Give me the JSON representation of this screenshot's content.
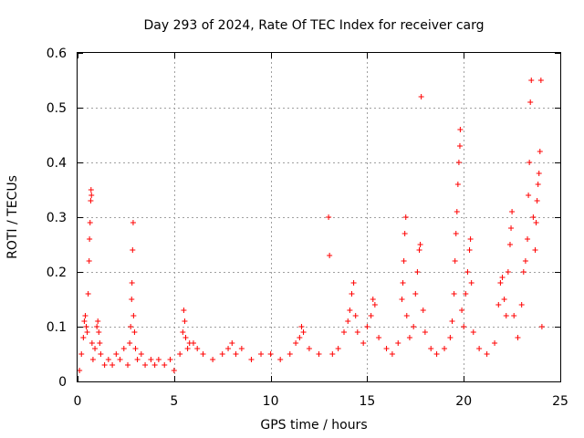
{
  "chart_data": {
    "type": "scatter",
    "title": "Day 293 of 2024, Rate Of TEC Index for receiver carg",
    "xlabel": "GPS time / hours",
    "ylabel": "ROTI / TECUs",
    "xlim": [
      0,
      25
    ],
    "ylim": [
      0,
      0.6
    ],
    "xticks": [
      0,
      5,
      10,
      15,
      20,
      25
    ],
    "yticks": [
      0,
      0.1,
      0.2,
      0.3,
      0.4,
      0.5,
      0.6
    ],
    "xtick_labels": [
      "0",
      "5",
      "10",
      "15",
      "20",
      "25"
    ],
    "ytick_labels": [
      "0",
      "0.1",
      "0.2",
      "0.3",
      "0.4",
      "0.5",
      "0.6"
    ],
    "grid": true,
    "marker": "+",
    "color": "#ff0000",
    "series": [
      {
        "name": "ROTI",
        "points": [
          [
            0.1,
            0.02
          ],
          [
            0.2,
            0.05
          ],
          [
            0.3,
            0.08
          ],
          [
            0.35,
            0.11
          ],
          [
            0.4,
            0.12
          ],
          [
            0.45,
            0.1
          ],
          [
            0.5,
            0.09
          ],
          [
            0.55,
            0.16
          ],
          [
            0.6,
            0.22
          ],
          [
            0.62,
            0.26
          ],
          [
            0.65,
            0.29
          ],
          [
            0.68,
            0.33
          ],
          [
            0.7,
            0.35
          ],
          [
            0.72,
            0.34
          ],
          [
            0.75,
            0.07
          ],
          [
            0.8,
            0.04
          ],
          [
            0.9,
            0.06
          ],
          [
            1.0,
            0.1
          ],
          [
            1.05,
            0.11
          ],
          [
            1.1,
            0.09
          ],
          [
            1.15,
            0.07
          ],
          [
            1.2,
            0.05
          ],
          [
            1.4,
            0.03
          ],
          [
            1.6,
            0.04
          ],
          [
            1.8,
            0.03
          ],
          [
            2.0,
            0.05
          ],
          [
            2.2,
            0.04
          ],
          [
            2.4,
            0.06
          ],
          [
            2.6,
            0.03
          ],
          [
            2.7,
            0.07
          ],
          [
            2.75,
            0.1
          ],
          [
            2.8,
            0.15
          ],
          [
            2.82,
            0.18
          ],
          [
            2.85,
            0.24
          ],
          [
            2.88,
            0.29
          ],
          [
            2.9,
            0.12
          ],
          [
            2.95,
            0.09
          ],
          [
            3.0,
            0.06
          ],
          [
            3.1,
            0.04
          ],
          [
            3.3,
            0.05
          ],
          [
            3.5,
            0.03
          ],
          [
            3.8,
            0.04
          ],
          [
            4.0,
            0.03
          ],
          [
            4.2,
            0.04
          ],
          [
            4.5,
            0.03
          ],
          [
            4.8,
            0.04
          ],
          [
            5.0,
            0.02
          ],
          [
            5.3,
            0.05
          ],
          [
            5.45,
            0.09
          ],
          [
            5.5,
            0.13
          ],
          [
            5.55,
            0.11
          ],
          [
            5.6,
            0.08
          ],
          [
            5.7,
            0.06
          ],
          [
            5.8,
            0.07
          ],
          [
            6.0,
            0.07
          ],
          [
            6.2,
            0.06
          ],
          [
            6.5,
            0.05
          ],
          [
            7.0,
            0.04
          ],
          [
            7.5,
            0.05
          ],
          [
            7.8,
            0.06
          ],
          [
            8.0,
            0.07
          ],
          [
            8.2,
            0.05
          ],
          [
            8.5,
            0.06
          ],
          [
            9.0,
            0.04
          ],
          [
            9.5,
            0.05
          ],
          [
            10.0,
            0.05
          ],
          [
            10.5,
            0.04
          ],
          [
            11.0,
            0.05
          ],
          [
            11.3,
            0.07
          ],
          [
            11.5,
            0.08
          ],
          [
            11.6,
            0.1
          ],
          [
            11.7,
            0.09
          ],
          [
            12.0,
            0.06
          ],
          [
            12.5,
            0.05
          ],
          [
            13.0,
            0.3
          ],
          [
            13.05,
            0.23
          ],
          [
            13.2,
            0.05
          ],
          [
            13.5,
            0.06
          ],
          [
            13.8,
            0.09
          ],
          [
            14.0,
            0.11
          ],
          [
            14.1,
            0.13
          ],
          [
            14.2,
            0.16
          ],
          [
            14.3,
            0.18
          ],
          [
            14.4,
            0.12
          ],
          [
            14.5,
            0.09
          ],
          [
            14.8,
            0.07
          ],
          [
            15.0,
            0.1
          ],
          [
            15.2,
            0.12
          ],
          [
            15.3,
            0.15
          ],
          [
            15.4,
            0.14
          ],
          [
            15.6,
            0.08
          ],
          [
            16.0,
            0.06
          ],
          [
            16.3,
            0.05
          ],
          [
            16.6,
            0.07
          ],
          [
            16.8,
            0.15
          ],
          [
            16.85,
            0.18
          ],
          [
            16.9,
            0.22
          ],
          [
            16.95,
            0.27
          ],
          [
            17.0,
            0.3
          ],
          [
            17.05,
            0.12
          ],
          [
            17.2,
            0.08
          ],
          [
            17.4,
            0.1
          ],
          [
            17.5,
            0.16
          ],
          [
            17.6,
            0.2
          ],
          [
            17.7,
            0.24
          ],
          [
            17.75,
            0.25
          ],
          [
            17.8,
            0.52
          ],
          [
            17.9,
            0.13
          ],
          [
            18.0,
            0.09
          ],
          [
            18.3,
            0.06
          ],
          [
            18.6,
            0.05
          ],
          [
            19.0,
            0.06
          ],
          [
            19.3,
            0.08
          ],
          [
            19.4,
            0.11
          ],
          [
            19.5,
            0.16
          ],
          [
            19.55,
            0.22
          ],
          [
            19.6,
            0.27
          ],
          [
            19.65,
            0.31
          ],
          [
            19.7,
            0.36
          ],
          [
            19.75,
            0.4
          ],
          [
            19.8,
            0.43
          ],
          [
            19.82,
            0.46
          ],
          [
            19.9,
            0.13
          ],
          [
            20.0,
            0.1
          ],
          [
            20.1,
            0.16
          ],
          [
            20.2,
            0.2
          ],
          [
            20.3,
            0.24
          ],
          [
            20.35,
            0.26
          ],
          [
            20.4,
            0.18
          ],
          [
            20.5,
            0.09
          ],
          [
            20.8,
            0.06
          ],
          [
            21.2,
            0.05
          ],
          [
            21.6,
            0.07
          ],
          [
            21.8,
            0.14
          ],
          [
            21.9,
            0.18
          ],
          [
            22.0,
            0.19
          ],
          [
            22.1,
            0.15
          ],
          [
            22.2,
            0.12
          ],
          [
            22.3,
            0.2
          ],
          [
            22.4,
            0.25
          ],
          [
            22.45,
            0.28
          ],
          [
            22.5,
            0.31
          ],
          [
            22.6,
            0.12
          ],
          [
            22.8,
            0.08
          ],
          [
            23.0,
            0.14
          ],
          [
            23.1,
            0.2
          ],
          [
            23.2,
            0.22
          ],
          [
            23.3,
            0.26
          ],
          [
            23.35,
            0.34
          ],
          [
            23.4,
            0.4
          ],
          [
            23.45,
            0.51
          ],
          [
            23.5,
            0.55
          ],
          [
            23.6,
            0.3
          ],
          [
            23.7,
            0.24
          ],
          [
            23.75,
            0.29
          ],
          [
            23.8,
            0.33
          ],
          [
            23.85,
            0.36
          ],
          [
            23.9,
            0.38
          ],
          [
            23.95,
            0.42
          ],
          [
            24.0,
            0.55
          ],
          [
            24.05,
            0.1
          ]
        ]
      }
    ]
  }
}
